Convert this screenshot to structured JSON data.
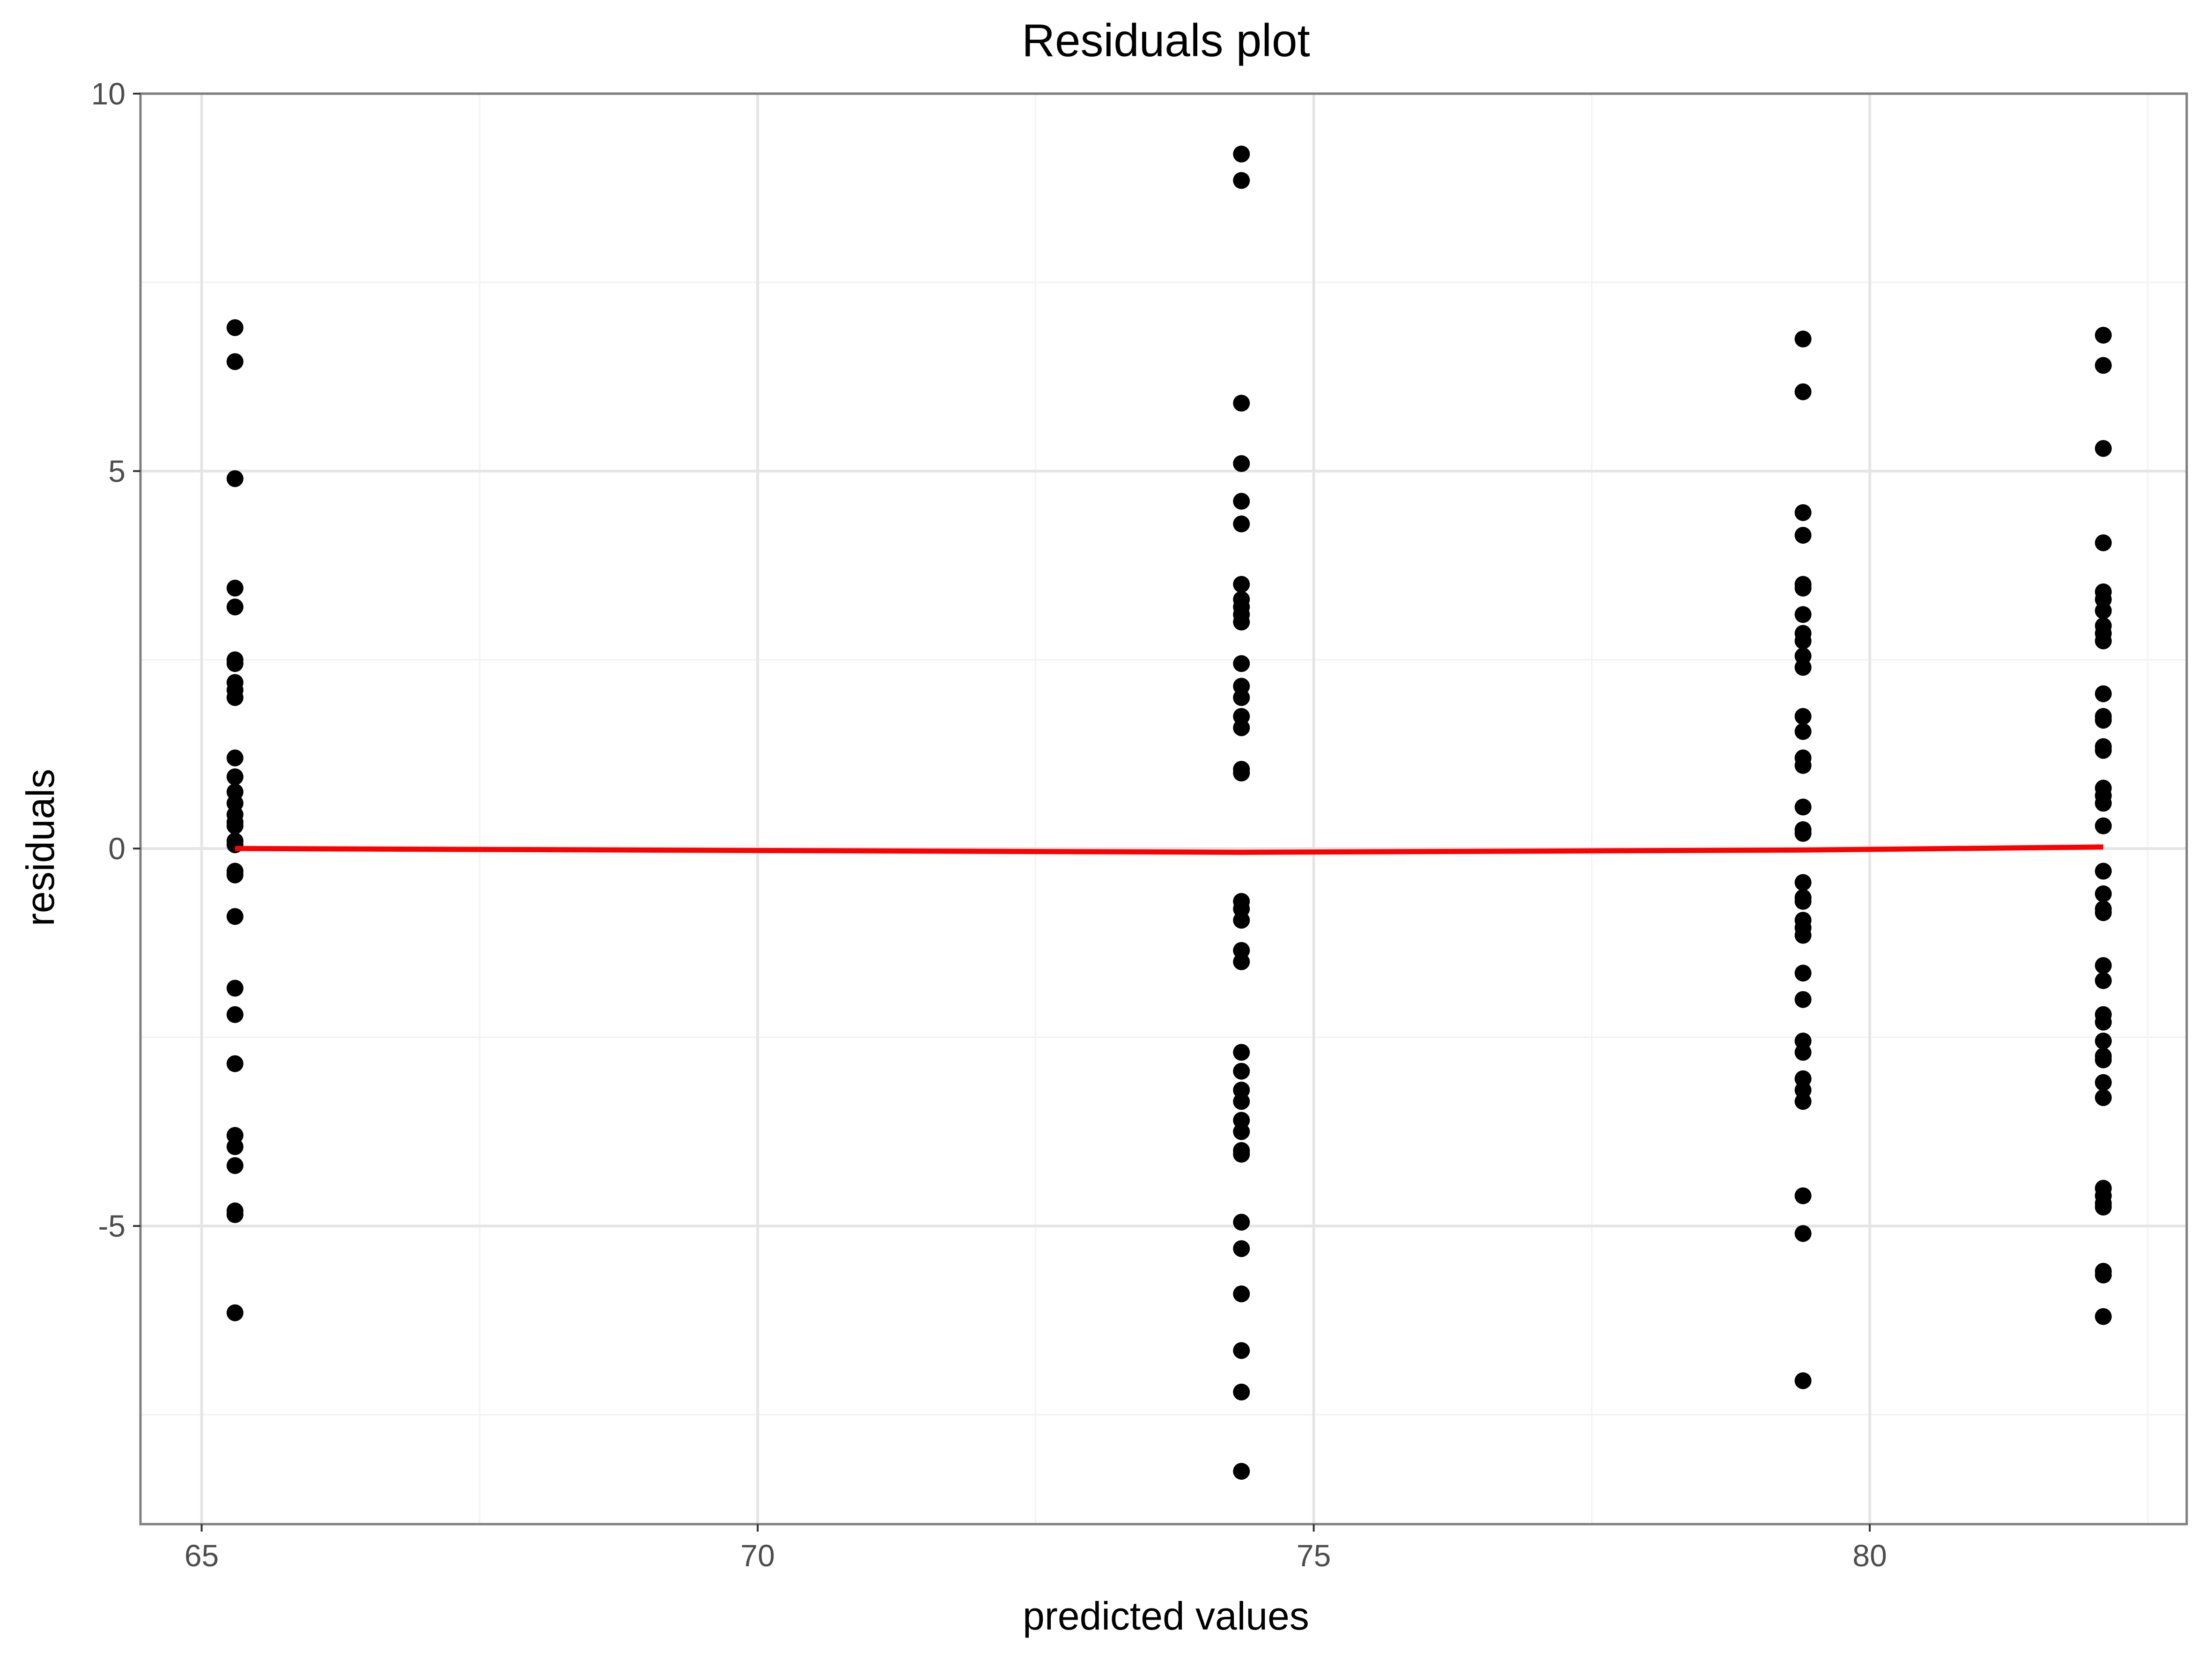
{
  "chart_data": {
    "type": "scatter",
    "title": "Residuals plot",
    "xlabel": "predicted values",
    "ylabel": "residuals",
    "xlim": [
      64.45,
      82.85
    ],
    "ylim": [
      -8.95,
      10.0
    ],
    "x_ticks": [
      65,
      70,
      75,
      80
    ],
    "y_ticks": [
      -5,
      0,
      5,
      10
    ],
    "x_tick_labels": [
      "65",
      "70",
      "75",
      "80"
    ],
    "y_tick_labels": [
      "-5",
      "0",
      "5",
      "10"
    ],
    "grid": true,
    "point_color": "#000000",
    "smooth_color": "#ff0000",
    "groups": [
      {
        "x": 65.3,
        "residuals": [
          6.9,
          6.45,
          4.9,
          3.45,
          3.2,
          2.5,
          2.45,
          2.2,
          2.1,
          2.0,
          1.2,
          0.95,
          0.75,
          0.6,
          0.45,
          0.35,
          0.3,
          0.1,
          0.05,
          -0.3,
          -0.35,
          -0.9,
          -1.85,
          -2.2,
          -2.85,
          -3.8,
          -3.95,
          -4.2,
          -4.8,
          -4.85,
          -6.15
        ]
      },
      {
        "x": 74.35,
        "residuals": [
          9.2,
          8.85,
          5.9,
          5.1,
          4.6,
          4.3,
          3.5,
          3.3,
          3.2,
          3.1,
          3.0,
          2.45,
          2.15,
          2.0,
          1.75,
          1.6,
          1.05,
          1.0,
          -0.7,
          -0.8,
          -0.95,
          -1.35,
          -1.5,
          -2.7,
          -2.95,
          -3.2,
          -3.35,
          -3.6,
          -3.75,
          -4.0,
          -4.05,
          -4.95,
          -5.3,
          -5.9,
          -6.65,
          -7.2,
          -8.25
        ]
      },
      {
        "x": 79.4,
        "residuals": [
          6.75,
          6.05,
          4.45,
          4.15,
          3.5,
          3.45,
          3.1,
          2.85,
          2.75,
          2.55,
          2.4,
          1.75,
          1.55,
          1.2,
          1.1,
          0.55,
          0.25,
          0.2,
          -0.45,
          -0.65,
          -0.7,
          -0.95,
          -1.05,
          -1.15,
          -1.65,
          -2.0,
          -2.55,
          -2.7,
          -3.05,
          -3.2,
          -3.35,
          -4.6,
          -5.1,
          -7.05
        ]
      },
      {
        "x": 82.1,
        "residuals": [
          6.8,
          6.4,
          5.3,
          4.05,
          3.4,
          3.3,
          3.15,
          2.95,
          2.85,
          2.75,
          2.05,
          1.75,
          1.7,
          1.35,
          1.3,
          0.8,
          0.7,
          0.6,
          0.3,
          -0.3,
          -0.6,
          -0.8,
          -0.85,
          -1.55,
          -1.75,
          -2.2,
          -2.3,
          -2.55,
          -2.75,
          -2.8,
          -3.1,
          -3.3,
          -4.5,
          -4.6,
          -4.7,
          -4.75,
          -5.6,
          -5.65,
          -6.2
        ]
      }
    ],
    "smooth_line": {
      "x": [
        65.3,
        74.35,
        79.4,
        82.1
      ],
      "y": [
        0.0,
        -0.05,
        -0.02,
        0.02
      ]
    }
  }
}
